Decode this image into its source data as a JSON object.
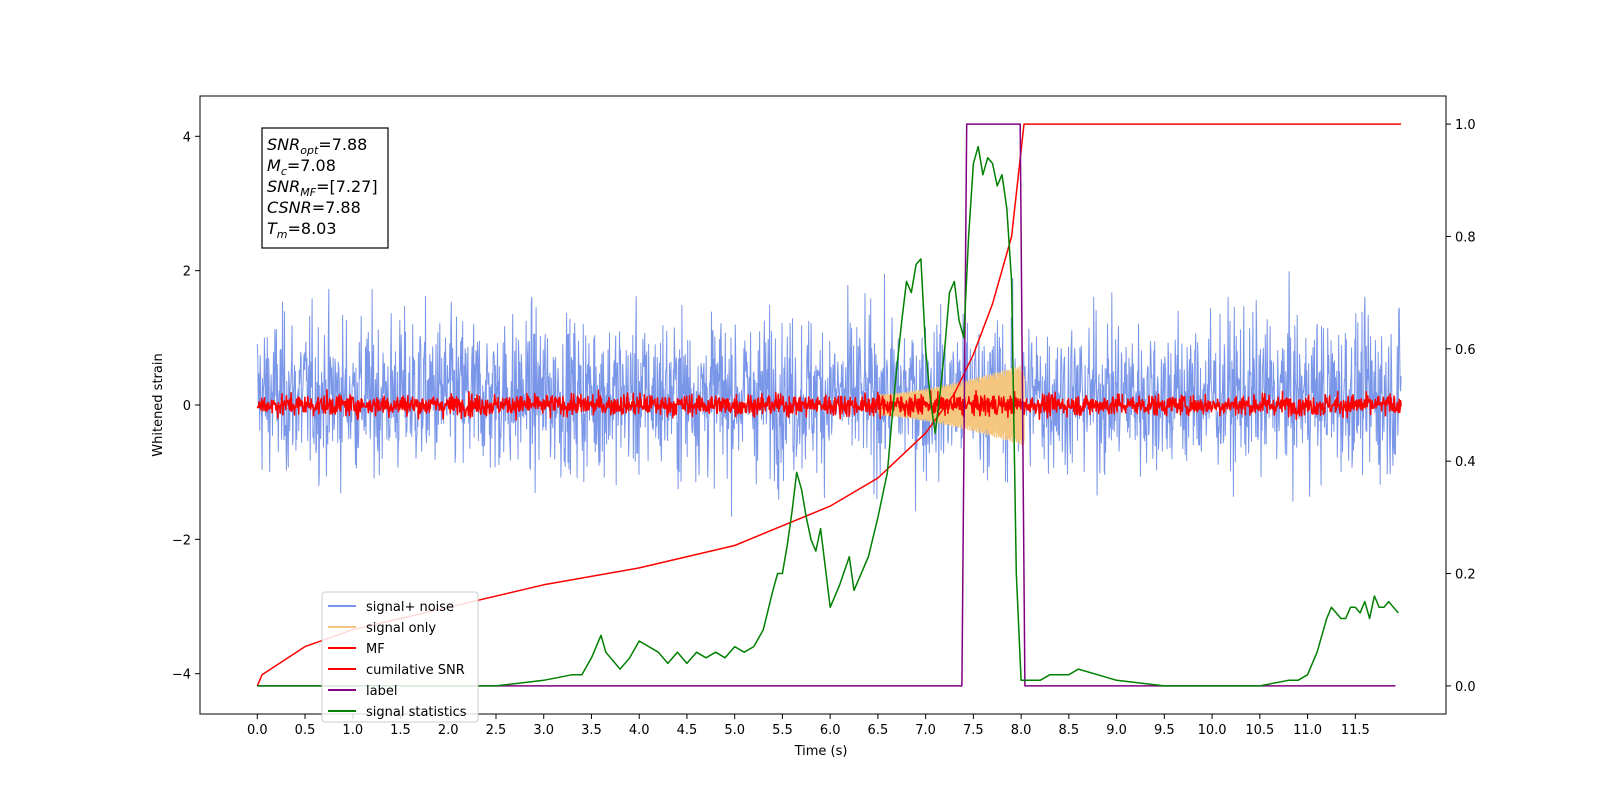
{
  "chart_data": {
    "type": "line",
    "xlabel": "Time (s)",
    "ylabel": "Whitened strain",
    "xlim": [
      -0.6,
      12.45
    ],
    "ylim": [
      -4.6,
      4.6
    ],
    "y2lim": [
      -0.05,
      1.05
    ],
    "grid": false,
    "legend_position": "lower-left",
    "x_ticks": [
      "0.0",
      "0.5",
      "1.0",
      "1.5",
      "2.0",
      "2.5",
      "3.0",
      "3.5",
      "4.0",
      "4.5",
      "5.0",
      "5.5",
      "6.0",
      "6.5",
      "7.0",
      "7.5",
      "8.0",
      "8.5",
      "9.0",
      "9.5",
      "10.0",
      "10.5",
      "11.0",
      "11.5"
    ],
    "y_ticks_left": [
      "-4",
      "-2",
      "0",
      "2",
      "4"
    ],
    "y_ticks_right": [
      "0.0",
      "0.2",
      "0.4",
      "0.6",
      "0.8",
      "1.0"
    ],
    "annotation": [
      {
        "base": "SNR",
        "sub": "opt",
        "value": "=7.88"
      },
      {
        "base": "M",
        "sub": "c",
        "value": "=7.08"
      },
      {
        "base": "SNR",
        "sub": "MF",
        "value": "=[7.27]"
      },
      {
        "base": "CSNR",
        "sub": "",
        "value": "=7.88"
      },
      {
        "base": "T",
        "sub": "m",
        "value": "=8.03"
      }
    ],
    "series": [
      {
        "name": "signal+ noise",
        "color": "#7a96e8",
        "axis": "left",
        "kind": "noise",
        "x_range": [
          0,
          11.98
        ],
        "amplitude": 1.3
      },
      {
        "name": "signal only",
        "color": "#f5c77e",
        "axis": "left",
        "kind": "chirp",
        "x_range": [
          6.5,
          8.03
        ],
        "amplitude_max": 0.6
      },
      {
        "name": "MF",
        "color": "#ff0000",
        "axis": "left",
        "kind": "noise",
        "x_range": [
          0,
          11.98
        ],
        "amplitude": 0.18
      },
      {
        "name": "cumilative SNR",
        "color": "#ff0000",
        "axis": "right",
        "x": [
          0.0,
          0.05,
          0.5,
          1.0,
          2.0,
          3.0,
          4.0,
          5.0,
          6.0,
          6.5,
          7.0,
          7.3,
          7.5,
          7.7,
          7.9,
          8.03,
          11.98
        ],
        "y": [
          0.0,
          0.02,
          0.07,
          0.1,
          0.14,
          0.18,
          0.21,
          0.25,
          0.32,
          0.37,
          0.45,
          0.52,
          0.59,
          0.68,
          0.8,
          1.0,
          1.0
        ]
      },
      {
        "name": "label",
        "color": "#800080",
        "axis": "right",
        "x": [
          0.0,
          7.38,
          7.43,
          7.99,
          8.04,
          11.92
        ],
        "y": [
          0.0,
          0.0,
          1.0,
          1.0,
          0.0,
          0.0
        ]
      },
      {
        "name": "signal statistics",
        "color": "#008000",
        "axis": "right",
        "x": [
          0.0,
          0.5,
          1.0,
          1.5,
          2.0,
          2.5,
          3.0,
          3.3,
          3.4,
          3.5,
          3.6,
          3.65,
          3.8,
          3.9,
          4.0,
          4.2,
          4.3,
          4.4,
          4.5,
          4.6,
          4.7,
          4.8,
          4.9,
          5.0,
          5.1,
          5.2,
          5.3,
          5.4,
          5.45,
          5.5,
          5.55,
          5.6,
          5.65,
          5.7,
          5.75,
          5.8,
          5.85,
          5.9,
          6.0,
          6.1,
          6.2,
          6.25,
          6.3,
          6.35,
          6.4,
          6.5,
          6.6,
          6.65,
          6.7,
          6.75,
          6.8,
          6.85,
          6.9,
          6.95,
          7.0,
          7.05,
          7.1,
          7.15,
          7.2,
          7.25,
          7.3,
          7.35,
          7.4,
          7.45,
          7.5,
          7.55,
          7.6,
          7.65,
          7.7,
          7.75,
          7.8,
          7.85,
          7.9,
          7.95,
          8.0,
          8.05,
          8.2,
          8.3,
          8.5,
          8.6,
          8.8,
          9.0,
          9.5,
          10.0,
          10.5,
          10.8,
          10.9,
          11.0,
          11.05,
          11.1,
          11.15,
          11.2,
          11.25,
          11.3,
          11.35,
          11.4,
          11.45,
          11.5,
          11.55,
          11.6,
          11.65,
          11.7,
          11.75,
          11.8,
          11.85,
          11.9,
          11.95
        ],
        "y": [
          0.0,
          0.0,
          0.0,
          0.0,
          0.0,
          0.0,
          0.01,
          0.02,
          0.02,
          0.05,
          0.09,
          0.06,
          0.03,
          0.05,
          0.08,
          0.06,
          0.04,
          0.06,
          0.04,
          0.06,
          0.05,
          0.06,
          0.05,
          0.07,
          0.06,
          0.07,
          0.1,
          0.17,
          0.2,
          0.2,
          0.25,
          0.31,
          0.38,
          0.35,
          0.3,
          0.26,
          0.24,
          0.28,
          0.14,
          0.18,
          0.23,
          0.17,
          0.19,
          0.21,
          0.23,
          0.3,
          0.38,
          0.48,
          0.57,
          0.65,
          0.72,
          0.7,
          0.75,
          0.76,
          0.6,
          0.51,
          0.45,
          0.52,
          0.6,
          0.7,
          0.72,
          0.65,
          0.62,
          0.8,
          0.93,
          0.96,
          0.91,
          0.94,
          0.93,
          0.89,
          0.91,
          0.85,
          0.72,
          0.2,
          0.01,
          0.01,
          0.01,
          0.02,
          0.02,
          0.03,
          0.02,
          0.01,
          0.0,
          0.0,
          0.0,
          0.01,
          0.01,
          0.02,
          0.04,
          0.06,
          0.09,
          0.12,
          0.14,
          0.13,
          0.12,
          0.12,
          0.14,
          0.14,
          0.13,
          0.15,
          0.12,
          0.16,
          0.14,
          0.14,
          0.15,
          0.14,
          0.13
        ]
      }
    ]
  }
}
